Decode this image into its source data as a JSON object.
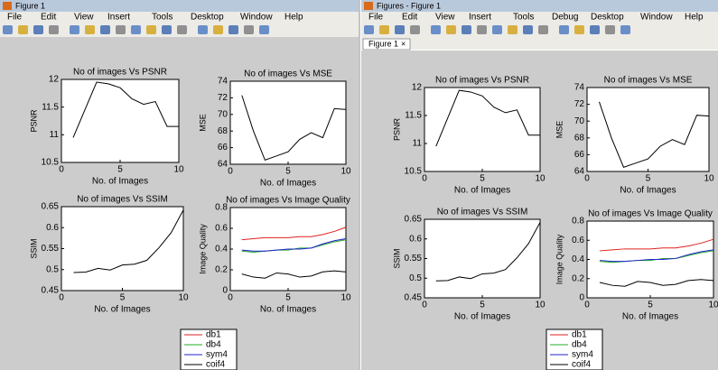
{
  "windows": [
    {
      "title": "Figure 1",
      "menu": [
        "File",
        "Edit",
        "View",
        "Insert",
        "Tools",
        "Desktop",
        "Window",
        "Help"
      ]
    },
    {
      "title": "Figures - Figure 1",
      "menu": [
        "File",
        "Edit",
        "View",
        "Insert",
        "Tools",
        "Debug",
        "Desktop",
        "Window",
        "Help"
      ],
      "tab": "Figure 1",
      "tab_close": "×"
    }
  ],
  "chart_data": [
    {
      "type": "line",
      "title": "No of images Vs PSNR",
      "x_label": "No. of Images",
      "y_label": "PSNR",
      "x": [
        1,
        2,
        3,
        4,
        5,
        6,
        7,
        8,
        9,
        10
      ],
      "values": [
        10.95,
        11.45,
        11.95,
        11.92,
        11.85,
        11.65,
        11.55,
        11.6,
        11.15,
        11.15
      ],
      "color": "#000000",
      "xlim": [
        0,
        10
      ],
      "ylim": [
        10.5,
        12
      ],
      "xticks": [
        0,
        5,
        10
      ],
      "yticks": [
        10.5,
        11,
        11.5,
        12
      ]
    },
    {
      "type": "line",
      "title": "No of images Vs MSE",
      "x_label": "No. of Images",
      "y_label": "MSE",
      "x": [
        1,
        2,
        3,
        4,
        5,
        6,
        7,
        8,
        9,
        10
      ],
      "values": [
        72.3,
        68,
        64.5,
        65,
        65.5,
        67,
        67.8,
        67.2,
        70.7,
        70.6
      ],
      "color": "#000000",
      "xlim": [
        0,
        10
      ],
      "ylim": [
        64,
        74
      ],
      "xticks": [
        0,
        5,
        10
      ],
      "yticks": [
        64,
        66,
        68,
        70,
        72,
        74
      ]
    },
    {
      "type": "line",
      "title": "No of images Vs SSIM",
      "x_label": "No. of Images",
      "y_label": "SSIM",
      "x": [
        1,
        2,
        3,
        4,
        5,
        6,
        7,
        8,
        9,
        10
      ],
      "values": [
        0.493,
        0.494,
        0.503,
        0.499,
        0.511,
        0.513,
        0.522,
        0.552,
        0.588,
        0.642
      ],
      "color": "#000000",
      "xlim": [
        0,
        10
      ],
      "ylim": [
        0.45,
        0.65
      ],
      "xticks": [
        0,
        5,
        10
      ],
      "yticks": [
        0.45,
        0.5,
        0.55,
        0.6,
        0.65
      ]
    },
    {
      "type": "line",
      "title": "No of images Vs Image Quality",
      "x_label": "No. of Images",
      "y_label": "Image Quality",
      "x": [
        1,
        2,
        3,
        4,
        5,
        6,
        7,
        8,
        9,
        10
      ],
      "xlim": [
        0,
        10
      ],
      "ylim": [
        0,
        0.8
      ],
      "xticks": [
        0,
        5,
        10
      ],
      "yticks": [
        0,
        0.2,
        0.4,
        0.6,
        0.8
      ],
      "series": [
        {
          "name": "db1",
          "color": "#e02020",
          "values": [
            0.49,
            0.5,
            0.51,
            0.51,
            0.51,
            0.52,
            0.52,
            0.54,
            0.57,
            0.61
          ]
        },
        {
          "name": "db4",
          "color": "#20b020",
          "values": [
            0.38,
            0.37,
            0.38,
            0.39,
            0.39,
            0.41,
            0.41,
            0.44,
            0.47,
            0.49
          ]
        },
        {
          "name": "sym4",
          "color": "#2020d0",
          "values": [
            0.39,
            0.38,
            0.38,
            0.39,
            0.4,
            0.4,
            0.41,
            0.45,
            0.48,
            0.5
          ]
        },
        {
          "name": "coif4",
          "color": "#000000",
          "values": [
            0.16,
            0.13,
            0.12,
            0.17,
            0.16,
            0.13,
            0.14,
            0.18,
            0.19,
            0.18
          ]
        }
      ]
    },
    {
      "type": "line",
      "title": "No of images Vs PSNR",
      "x_label": "No. of Images",
      "y_label": "PSNR",
      "x": [
        1,
        2,
        3,
        4,
        5,
        6,
        7,
        8,
        9,
        10
      ],
      "values": [
        10.95,
        11.45,
        11.95,
        11.92,
        11.85,
        11.65,
        11.55,
        11.6,
        11.15,
        11.15
      ],
      "color": "#000000",
      "xlim": [
        0,
        10
      ],
      "ylim": [
        10.5,
        12
      ],
      "xticks": [
        0,
        5,
        10
      ],
      "yticks": [
        10.5,
        11,
        11.5,
        12
      ]
    },
    {
      "type": "line",
      "title": "No of images Vs MSE",
      "x_label": "No. of Images",
      "y_label": "MSE",
      "x": [
        1,
        2,
        3,
        4,
        5,
        6,
        7,
        8,
        9,
        10
      ],
      "values": [
        72.3,
        68,
        64.5,
        65,
        65.5,
        67,
        67.8,
        67.2,
        70.7,
        70.6
      ],
      "color": "#000000",
      "xlim": [
        0,
        10
      ],
      "ylim": [
        64,
        74
      ],
      "xticks": [
        0,
        5,
        10
      ],
      "yticks": [
        64,
        66,
        68,
        70,
        72,
        74
      ]
    },
    {
      "type": "line",
      "title": "No of images Vs SSIM",
      "x_label": "No. of Images",
      "y_label": "SSIM",
      "x": [
        1,
        2,
        3,
        4,
        5,
        6,
        7,
        8,
        9,
        10
      ],
      "values": [
        0.493,
        0.494,
        0.503,
        0.499,
        0.511,
        0.513,
        0.522,
        0.552,
        0.588,
        0.642
      ],
      "color": "#000000",
      "xlim": [
        0,
        10
      ],
      "ylim": [
        0.45,
        0.65
      ],
      "xticks": [
        0,
        5,
        10
      ],
      "yticks": [
        0.45,
        0.5,
        0.55,
        0.6,
        0.65
      ]
    },
    {
      "type": "line",
      "title": "No of images Vs Image Quality",
      "x_label": "No. of Images",
      "y_label": "Image Quality",
      "x": [
        1,
        2,
        3,
        4,
        5,
        6,
        7,
        8,
        9,
        10
      ],
      "xlim": [
        0,
        10
      ],
      "ylim": [
        0,
        0.8
      ],
      "xticks": [
        0,
        5,
        10
      ],
      "yticks": [
        0,
        0.2,
        0.4,
        0.6,
        0.8
      ],
      "series": [
        {
          "name": "db1",
          "color": "#e02020",
          "values": [
            0.49,
            0.5,
            0.51,
            0.51,
            0.51,
            0.52,
            0.52,
            0.54,
            0.57,
            0.61
          ]
        },
        {
          "name": "db4",
          "color": "#20b020",
          "values": [
            0.38,
            0.37,
            0.38,
            0.39,
            0.39,
            0.41,
            0.41,
            0.44,
            0.47,
            0.49
          ]
        },
        {
          "name": "sym4",
          "color": "#2020d0",
          "values": [
            0.39,
            0.38,
            0.38,
            0.39,
            0.4,
            0.4,
            0.41,
            0.45,
            0.48,
            0.5
          ]
        },
        {
          "name": "coif4",
          "color": "#000000",
          "values": [
            0.16,
            0.13,
            0.12,
            0.17,
            0.16,
            0.13,
            0.14,
            0.18,
            0.19,
            0.18
          ]
        }
      ]
    }
  ]
}
